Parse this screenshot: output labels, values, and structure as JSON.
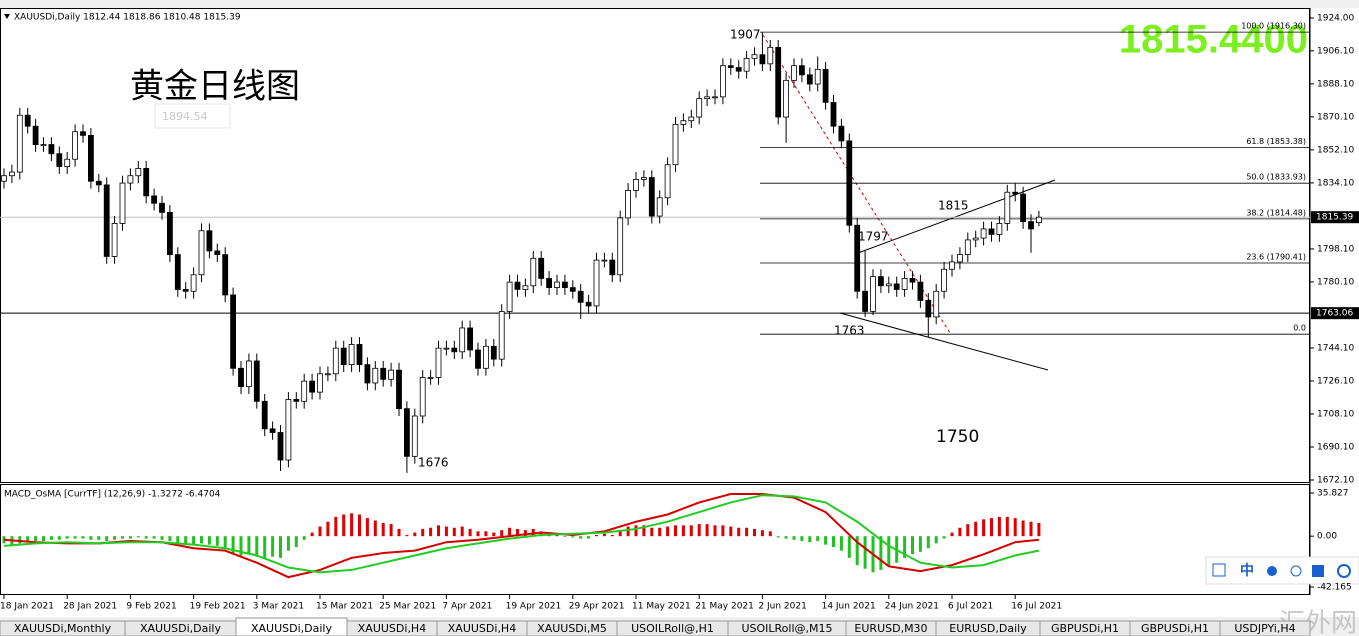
{
  "chart_data": [
    {
      "type": "candlestick",
      "header": "XAUUSDi,Daily  1812.44 1818.86 1810.48 1815.39",
      "title": "黄金日线图",
      "old_label": "1894.54",
      "quote": "1815.4400",
      "annotations": [
        "1907",
        "1676",
        "1815",
        "1797",
        "1763",
        "1750"
      ],
      "categories": [
        "18 Jan 2021",
        null,
        null,
        null,
        null,
        null,
        null,
        null,
        "28 Jan 2021",
        null,
        null,
        null,
        null,
        null,
        null,
        null,
        "9 Feb 2021",
        null,
        null,
        null,
        null,
        null,
        null,
        null,
        "19 Feb 2021",
        null,
        null,
        null,
        null,
        null,
        null,
        null,
        "3 Mar 2021",
        null,
        null,
        null,
        null,
        null,
        null,
        null,
        "15 Mar 2021",
        null,
        null,
        null,
        null,
        null,
        null,
        null,
        "25 Mar 2021",
        null,
        null,
        null,
        null,
        null,
        null,
        null,
        "7 Apr 2021",
        null,
        null,
        null,
        null,
        null,
        null,
        null,
        "19 Apr 2021",
        null,
        null,
        null,
        null,
        null,
        null,
        null,
        "29 Apr 2021",
        null,
        null,
        null,
        null,
        null,
        null,
        null,
        "11 May 2021",
        null,
        null,
        null,
        null,
        null,
        null,
        null,
        "21 May 2021",
        null,
        null,
        null,
        null,
        null,
        null,
        null,
        "2 Jun 2021",
        null,
        null,
        null,
        null,
        null,
        null,
        null,
        "14 Jun 2021",
        null,
        null,
        null,
        null,
        null,
        null,
        null,
        "24 Jun 2021",
        null,
        null,
        null,
        null,
        null,
        null,
        null,
        "6 Jul 2021",
        null,
        null,
        null,
        null,
        null,
        null,
        null,
        "16 Jul 2021",
        null,
        null,
        null
      ],
      "open": [
        1835,
        1838,
        1840,
        1871,
        1865,
        1855,
        1855,
        1850,
        1843,
        1847,
        1862,
        1860,
        1835,
        1833,
        1794,
        1812,
        1834,
        1838,
        1842,
        1827,
        1823,
        1818,
        1795,
        1776,
        1775,
        1784,
        1808,
        1797,
        1795,
        1773,
        1733,
        1723,
        1737,
        1715,
        1700,
        1698,
        1683,
        1716,
        1715,
        1726,
        1720,
        1730,
        1730,
        1744,
        1735,
        1746,
        1735,
        1725,
        1733,
        1727,
        1732,
        1711,
        1685,
        1707,
        1728,
        1728,
        1744,
        1744,
        1742,
        1755,
        1743,
        1733,
        1745,
        1738,
        1764,
        1780,
        1776,
        1778,
        1793,
        1782,
        1777,
        1780,
        1777,
        1775,
        1769,
        1767,
        1792,
        1792,
        1784,
        1815,
        1830,
        1836,
        1837,
        1816,
        1826,
        1844,
        1866,
        1868,
        1870,
        1880,
        1881,
        1881,
        1898,
        1897,
        1895,
        1902,
        1904,
        1899,
        1908,
        1870,
        1890,
        1898,
        1893,
        1888,
        1896,
        1878,
        1865,
        1857,
        1811,
        1775,
        1764,
        1783,
        1778,
        1779,
        1776,
        1782,
        1780,
        1770,
        1761,
        1775,
        1787,
        1791,
        1795,
        1803,
        1804,
        1809,
        1806,
        1812,
        1829,
        1828,
        1813,
        1812.44
      ],
      "high": [
        1842,
        1844,
        1875,
        1875,
        1869,
        1859,
        1859,
        1854,
        1851,
        1866,
        1866,
        1864,
        1839,
        1837,
        1816,
        1838,
        1842,
        1846,
        1846,
        1831,
        1827,
        1822,
        1799,
        1780,
        1788,
        1812,
        1812,
        1801,
        1799,
        1777,
        1737,
        1741,
        1741,
        1719,
        1704,
        1702,
        1720,
        1720,
        1730,
        1730,
        1734,
        1734,
        1748,
        1748,
        1750,
        1750,
        1739,
        1737,
        1737,
        1736,
        1736,
        1715,
        1711,
        1732,
        1732,
        1748,
        1748,
        1748,
        1759,
        1759,
        1747,
        1749,
        1749,
        1768,
        1784,
        1784,
        1782,
        1797,
        1797,
        1786,
        1784,
        1784,
        1781,
        1779,
        1773,
        1796,
        1796,
        1796,
        1819,
        1834,
        1840,
        1841,
        1841,
        1830,
        1848,
        1870,
        1872,
        1874,
        1884,
        1885,
        1885,
        1902,
        1902,
        1901,
        1906,
        1908,
        1916.3,
        1912,
        1912,
        1894,
        1902,
        1902,
        1897,
        1903,
        1900,
        1882,
        1869,
        1861,
        1815,
        1797,
        1787,
        1787,
        1783,
        1783,
        1786,
        1786,
        1784,
        1774,
        1779,
        1791,
        1795,
        1799,
        1807,
        1808,
        1813,
        1813,
        1816,
        1833,
        1834,
        1832,
        1817,
        1818.86
      ],
      "low": [
        1831,
        1834,
        1836,
        1861,
        1851,
        1851,
        1846,
        1839,
        1839,
        1843,
        1856,
        1831,
        1829,
        1790,
        1790,
        1808,
        1830,
        1834,
        1823,
        1819,
        1814,
        1791,
        1772,
        1771,
        1771,
        1780,
        1793,
        1791,
        1769,
        1729,
        1719,
        1719,
        1711,
        1696,
        1694,
        1677,
        1679,
        1711,
        1711,
        1716,
        1716,
        1726,
        1726,
        1731,
        1731,
        1731,
        1721,
        1721,
        1723,
        1723,
        1707,
        1676,
        1681,
        1703,
        1724,
        1724,
        1740,
        1738,
        1738,
        1739,
        1729,
        1729,
        1734,
        1734,
        1760,
        1772,
        1772,
        1774,
        1778,
        1773,
        1773,
        1773,
        1771,
        1760,
        1763,
        1763,
        1788,
        1780,
        1780,
        1811,
        1826,
        1832,
        1812,
        1812,
        1822,
        1840,
        1862,
        1864,
        1866,
        1876,
        1877,
        1877,
        1893,
        1891,
        1891,
        1898,
        1895,
        1895,
        1866,
        1856,
        1886,
        1889,
        1884,
        1884,
        1874,
        1861,
        1853,
        1807,
        1771,
        1761,
        1762,
        1774,
        1774,
        1772,
        1772,
        1776,
        1766,
        1750,
        1757,
        1771,
        1783,
        1787,
        1791,
        1799,
        1800,
        1802,
        1802,
        1808,
        1824,
        1809,
        1796,
        1810.48
      ],
      "close": [
        1838,
        1840,
        1871,
        1865,
        1855,
        1855,
        1850,
        1843,
        1847,
        1862,
        1860,
        1835,
        1833,
        1794,
        1812,
        1834,
        1838,
        1842,
        1827,
        1823,
        1818,
        1795,
        1776,
        1775,
        1784,
        1808,
        1797,
        1795,
        1773,
        1733,
        1723,
        1737,
        1715,
        1700,
        1698,
        1683,
        1716,
        1715,
        1726,
        1720,
        1730,
        1730,
        1744,
        1735,
        1746,
        1735,
        1725,
        1733,
        1727,
        1732,
        1711,
        1685,
        1707,
        1728,
        1728,
        1744,
        1744,
        1742,
        1755,
        1743,
        1733,
        1745,
        1738,
        1764,
        1780,
        1776,
        1778,
        1793,
        1782,
        1777,
        1780,
        1777,
        1775,
        1769,
        1767,
        1792,
        1792,
        1784,
        1815,
        1830,
        1836,
        1837,
        1816,
        1826,
        1844,
        1866,
        1868,
        1870,
        1880,
        1881,
        1881,
        1898,
        1897,
        1895,
        1902,
        1904,
        1899,
        1908,
        1870,
        1890,
        1898,
        1893,
        1888,
        1896,
        1878,
        1865,
        1857,
        1811,
        1775,
        1764,
        1783,
        1778,
        1779,
        1776,
        1782,
        1780,
        1770,
        1761,
        1775,
        1787,
        1791,
        1795,
        1803,
        1804,
        1809,
        1806,
        1812,
        1829,
        1828,
        1813,
        1809,
        1815.39
      ],
      "ylim": [
        1672.1,
        1924
      ],
      "yticks": [
        {
          "value": 1924,
          "label": "1924.00"
        },
        {
          "value": 1906.1,
          "label": "1906.10"
        },
        {
          "value": 1888.1,
          "label": "1888.10"
        },
        {
          "value": 1870.1,
          "label": "1870.10"
        },
        {
          "value": 1852.1,
          "label": "1852.10"
        },
        {
          "value": 1834.1,
          "label": "1834.10"
        },
        {
          "value": 1798.1,
          "label": "1798.10"
        },
        {
          "value": 1780.1,
          "label": "1780.10"
        },
        {
          "value": 1744.1,
          "label": "1744.10"
        },
        {
          "value": 1726.1,
          "label": "1726.10"
        },
        {
          "value": 1708.1,
          "label": "1708.10"
        },
        {
          "value": 1690.1,
          "label": "1690.10"
        },
        {
          "value": 1672.1,
          "label": "1672.10"
        }
      ],
      "hlines": [
        {
          "value": 1763.06,
          "label": "1763.06"
        }
      ],
      "last_price": {
        "value": 1815.39,
        "label": "1815.39"
      },
      "fib_levels": [
        {
          "value": 1916.3,
          "label": "100.0 (1916.30)"
        },
        {
          "value": 1853.38,
          "label": "61.8 (1853.38)"
        },
        {
          "value": 1833.93,
          "label": "50.0 (1833.93)"
        },
        {
          "value": 1814.48,
          "label": "38.2 (1814.48)"
        },
        {
          "value": 1790.41,
          "label": "23.6 (1790.41)"
        },
        {
          "value": 1751.6,
          "label": "0.0"
        }
      ]
    },
    {
      "type": "macd",
      "label": "MACD_OsMA [CurrTF] (12,26,9) -1.3272 -6.4704",
      "histogram": [
        -6,
        -8,
        -6,
        -5,
        -4,
        -4,
        -3,
        -3,
        -2,
        -2,
        -2,
        -3,
        -3,
        -4,
        -3,
        -2,
        -2,
        -1,
        -2,
        -2,
        -3,
        -4,
        -6,
        -7,
        -7,
        -6,
        -7,
        -8,
        -10,
        -14,
        -16,
        -15,
        -17,
        -18,
        -17,
        -18,
        -12,
        -9,
        -3,
        3,
        8,
        12,
        16,
        18,
        19,
        18,
        15,
        13,
        11,
        10,
        6,
        1,
        3,
        6,
        7,
        9,
        8,
        7,
        8,
        6,
        4,
        4,
        3,
        5,
        7,
        6,
        5,
        6,
        4,
        2,
        1,
        0,
        -1,
        -2,
        -2,
        1,
        2,
        1,
        5,
        8,
        9,
        9,
        7,
        7,
        8,
        9,
        9,
        9,
        10,
        10,
        9,
        9,
        8,
        7,
        7,
        6,
        5,
        4,
        -1,
        -2,
        -3,
        -4,
        -5,
        -4,
        -7,
        -9,
        -12,
        -18,
        -24,
        -27,
        -30,
        -28,
        -25,
        -22,
        -18,
        -15,
        -13,
        -10,
        -6,
        -2,
        3,
        7,
        10,
        12,
        14,
        15,
        16,
        16,
        15,
        13,
        12,
        11
      ],
      "x": [
        0,
        4,
        8,
        12,
        16,
        20,
        24,
        28,
        32,
        36,
        40,
        44,
        48,
        52,
        56,
        60,
        64,
        68,
        72,
        76,
        80,
        84,
        88,
        92,
        96,
        100,
        104,
        108,
        112,
        116,
        120,
        124,
        128,
        131
      ],
      "lines": [
        {
          "color": "#d40000",
          "values": [
            -3,
            -5,
            -6,
            -6,
            -4,
            -5,
            -10,
            -12,
            -22,
            -34,
            -28,
            -18,
            -14,
            -12,
            -5,
            -3,
            0,
            3,
            1,
            4,
            12,
            18,
            28,
            35,
            35,
            32,
            20,
            -5,
            -25,
            -29,
            -24,
            -15,
            -5,
            -3
          ]
        },
        {
          "color": "#22cc22",
          "values": [
            -8,
            -6,
            -5,
            -6,
            -5,
            -5,
            -7,
            -10,
            -16,
            -26,
            -30,
            -28,
            -22,
            -16,
            -10,
            -6,
            -2,
            1,
            2,
            3,
            6,
            12,
            20,
            28,
            34,
            33,
            28,
            12,
            -8,
            -22,
            -26,
            -24,
            -16,
            -12
          ]
        }
      ],
      "ylim": [
        -42.165,
        35.827
      ],
      "yticks": [
        35.827,
        {
          "value": 0,
          "label": "0.00"
        },
        -42.165
      ]
    }
  ],
  "tabs": [
    "XAUUSDi,Monthly",
    "XAUUSDi,Daily",
    "XAUUSDi,Daily",
    "XAUUSDi,H4",
    "XAUUSDi,H4",
    "XAUUSDi,M5",
    "USOILRoll@,H1",
    "USOILRoll@,M15",
    "EURUSD,M30",
    "EURUSD,Daily",
    "GBPUSDi,H1",
    "GBPUSDi,H1",
    "USDJPYi,H4"
  ],
  "toolbar_label": "中",
  "watermark": "汇外网"
}
